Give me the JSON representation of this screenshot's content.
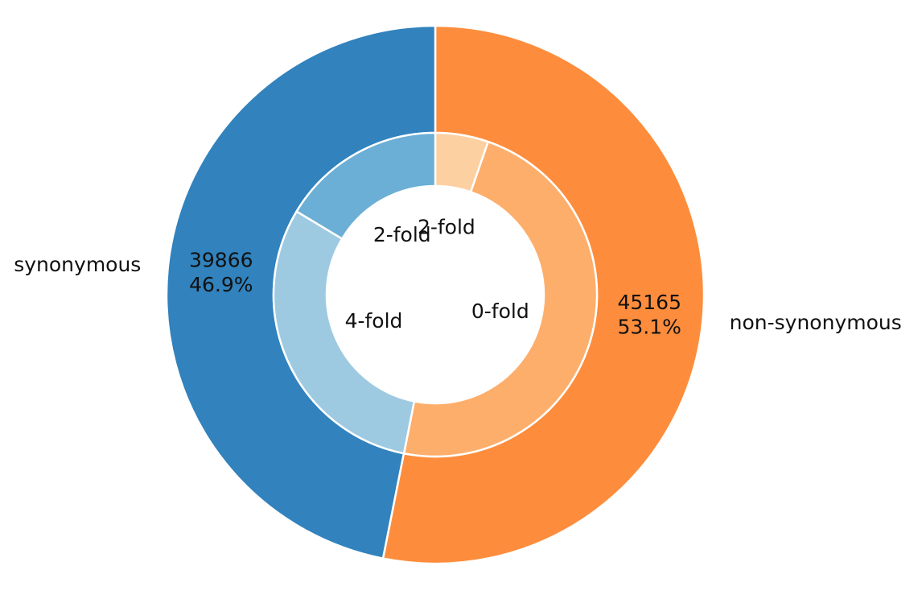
{
  "chart_data": {
    "type": "pie",
    "style": "nested donut",
    "outer_ring": {
      "slices": [
        {
          "label": "non-synonymous",
          "value": 45165,
          "percent_label": "53.1%",
          "color": "#fd8d3c"
        },
        {
          "label": "synonymous",
          "value": 39866,
          "percent_label": "46.9%",
          "color": "#3182bd"
        }
      ]
    },
    "inner_ring": {
      "slices": [
        {
          "label": "2-fold",
          "parent": "non-synonymous",
          "fraction": 0.053,
          "color": "#fdd0a2"
        },
        {
          "label": "0-fold",
          "parent": "non-synonymous",
          "fraction": 0.478,
          "color": "#fdae6b"
        },
        {
          "label": "4-fold",
          "parent": "synonymous",
          "fraction": 0.305,
          "color": "#9ecae1"
        },
        {
          "label": "2-fold",
          "parent": "synonymous",
          "fraction": 0.164,
          "color": "#6baed6"
        }
      ]
    },
    "start_angle": "top, clockwise",
    "legend": "none"
  }
}
